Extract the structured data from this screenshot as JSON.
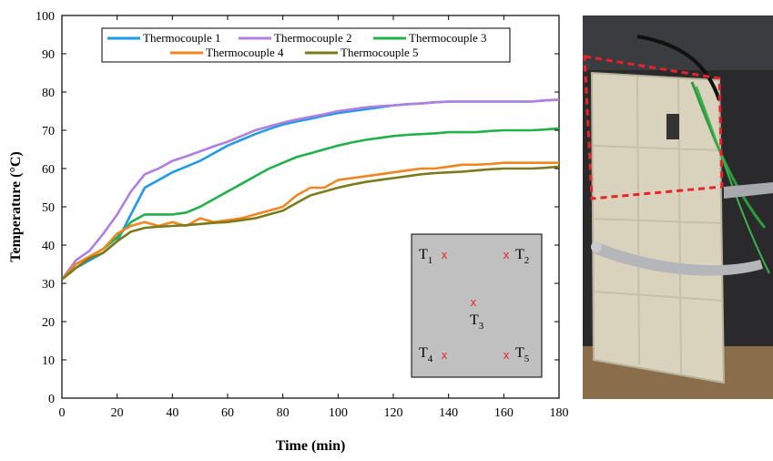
{
  "chart_data": {
    "type": "line",
    "xlabel": "Time (min)",
    "ylabel": "Temperature (°C)",
    "x": [
      0,
      5,
      10,
      15,
      20,
      25,
      30,
      35,
      40,
      45,
      50,
      55,
      60,
      65,
      70,
      75,
      80,
      85,
      90,
      95,
      100,
      105,
      110,
      115,
      120,
      125,
      130,
      135,
      140,
      145,
      150,
      155,
      160,
      165,
      170,
      175,
      180
    ],
    "series": [
      {
        "name": "Thermocouple 1",
        "color": "#1f9be8",
        "values": [
          31,
          34,
          36,
          38,
          41,
          48,
          55,
          57,
          59,
          60.5,
          62,
          64,
          66,
          67.5,
          69,
          70.3,
          71.5,
          72.3,
          73,
          73.8,
          74.5,
          75,
          75.5,
          76,
          76.5,
          76.8,
          77,
          77.3,
          77.5,
          77.5,
          77.5,
          77.5,
          77.5,
          77.5,
          77.5,
          77.8,
          78
        ]
      },
      {
        "name": "Thermocouple 2",
        "color": "#b07fe0",
        "values": [
          31,
          36,
          38.5,
          43,
          48,
          54,
          58.5,
          60,
          62,
          63.2,
          64.5,
          65.8,
          67,
          68.5,
          70,
          71,
          72,
          72.8,
          73.5,
          74.2,
          75,
          75.5,
          76,
          76.3,
          76.5,
          76.8,
          77,
          77.3,
          77.5,
          77.5,
          77.5,
          77.5,
          77.5,
          77.5,
          77.5,
          77.8,
          78
        ]
      },
      {
        "name": "Thermocouple 3",
        "color": "#22b04a",
        "values": [
          31,
          35,
          37,
          39,
          42,
          46,
          48,
          48,
          48,
          48.5,
          50,
          52,
          54,
          56,
          58,
          60,
          61.5,
          63,
          64,
          65,
          66,
          66.8,
          67.5,
          68,
          68.5,
          68.8,
          69,
          69.2,
          69.5,
          69.5,
          69.5,
          69.8,
          70,
          70,
          70,
          70.2,
          70.5
        ]
      },
      {
        "name": "Thermocouple 4",
        "color": "#f2851f",
        "values": [
          31,
          35,
          37,
          39,
          43,
          45,
          46,
          45,
          46,
          45,
          47,
          46,
          46.5,
          47,
          48,
          49,
          50,
          53,
          55,
          55,
          57,
          57.5,
          58,
          58.5,
          59,
          59.5,
          60,
          60,
          60.5,
          61,
          61,
          61.2,
          61.5,
          61.5,
          61.5,
          61.5,
          61.5
        ]
      },
      {
        "name": "Thermocouple 5",
        "color": "#7c7a1a",
        "values": [
          31,
          34,
          36.5,
          38,
          41,
          43.5,
          44.5,
          44.8,
          45,
          45.2,
          45.5,
          45.8,
          46,
          46.5,
          47,
          48,
          49,
          51,
          53,
          54,
          55,
          55.8,
          56.5,
          57,
          57.5,
          58,
          58.5,
          58.8,
          59,
          59.2,
          59.5,
          59.8,
          60,
          60,
          60,
          60.2,
          60.5
        ]
      }
    ],
    "xlim": [
      0,
      180
    ],
    "xticks": [
      0,
      20,
      40,
      60,
      80,
      100,
      120,
      140,
      160,
      180
    ],
    "ylim": [
      0,
      100
    ],
    "yticks": [
      0,
      10,
      20,
      30,
      40,
      50,
      60,
      70,
      80,
      90,
      100
    ],
    "inset_labels": [
      {
        "text": "T",
        "sub": "1"
      },
      {
        "text": "T",
        "sub": "2"
      },
      {
        "text": "T",
        "sub": "3"
      },
      {
        "text": "T",
        "sub": "4"
      },
      {
        "text": "T",
        "sub": "5"
      }
    ]
  }
}
